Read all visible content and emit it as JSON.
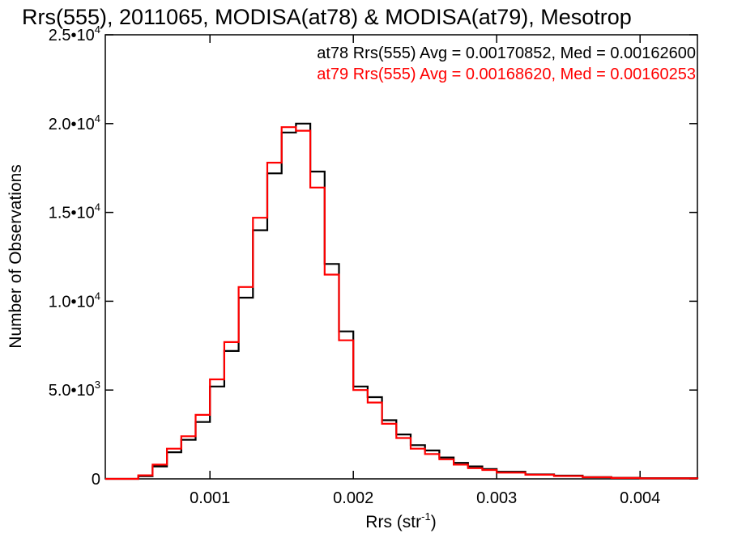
{
  "chart_data": {
    "type": "line",
    "title": "Rrs(555), 2011065, MODISA(at78) & MODISA(at79), Mesotrop",
    "xlabel": "Rrs (str",
    "xlabel_sup": "-1",
    "xlabel_close": ")",
    "ylabel": "Number of Observations",
    "xlim": [
      0.00027,
      0.0044
    ],
    "ylim": [
      0,
      25000
    ],
    "x_ticks": [
      {
        "value": 0.001,
        "label": "0.001"
      },
      {
        "value": 0.002,
        "label": "0.002"
      },
      {
        "value": 0.003,
        "label": "0.003"
      },
      {
        "value": 0.004,
        "label": "0.004"
      }
    ],
    "y_ticks": [
      {
        "value": 0,
        "mant": "0",
        "exp": ""
      },
      {
        "value": 5000,
        "mant": "5.0•10",
        "exp": "3"
      },
      {
        "value": 10000,
        "mant": "1.0•10",
        "exp": "4"
      },
      {
        "value": 15000,
        "mant": "1.5•10",
        "exp": "4"
      },
      {
        "value": 20000,
        "mant": "2.0•10",
        "exp": "4"
      },
      {
        "value": 25000,
        "mant": "2.5•10",
        "exp": "4"
      }
    ],
    "annotations": [
      {
        "text": "at78 Rrs(555) Avg = 0.00170852, Med = 0.00162600",
        "color": "#000000"
      },
      {
        "text": "at79 Rrs(555) Avg = 0.00168620, Med = 0.00160253",
        "color": "#ff0000"
      }
    ],
    "series": [
      {
        "color": "#000000",
        "x": [
          0.00027,
          0.0004,
          0.0005,
          0.0006,
          0.0007,
          0.0008,
          0.0009,
          0.001,
          0.0011,
          0.0012,
          0.0013,
          0.0014,
          0.0015,
          0.0016,
          0.0017,
          0.0018,
          0.0019,
          0.002,
          0.0021,
          0.0022,
          0.0023,
          0.0024,
          0.0025,
          0.0026,
          0.0027,
          0.0028,
          0.0029,
          0.003,
          0.0032,
          0.0034,
          0.0036,
          0.0038,
          0.004,
          0.0044
        ],
        "y": [
          0,
          0,
          150,
          700,
          1500,
          2200,
          3200,
          5200,
          7200,
          10200,
          14000,
          17200,
          19500,
          20000,
          17300,
          12100,
          8300,
          5200,
          4600,
          3300,
          2500,
          1900,
          1600,
          1200,
          900,
          700,
          550,
          400,
          250,
          180,
          100,
          60,
          40,
          0
        ]
      },
      {
        "color": "#ff0000",
        "x": [
          0.00027,
          0.0004,
          0.0005,
          0.0006,
          0.0007,
          0.0008,
          0.0009,
          0.001,
          0.0011,
          0.0012,
          0.0013,
          0.0014,
          0.0015,
          0.0016,
          0.0017,
          0.0018,
          0.0019,
          0.002,
          0.0021,
          0.0022,
          0.0023,
          0.0024,
          0.0025,
          0.0026,
          0.0027,
          0.0028,
          0.0029,
          0.003,
          0.0032,
          0.0034,
          0.0036,
          0.0038,
          0.004,
          0.0044
        ],
        "y": [
          0,
          0,
          200,
          800,
          1700,
          2400,
          3600,
          5600,
          7700,
          10800,
          14700,
          17800,
          19800,
          19600,
          16400,
          11500,
          7800,
          5000,
          4300,
          3100,
          2300,
          1700,
          1400,
          1100,
          800,
          600,
          500,
          350,
          230,
          160,
          90,
          50,
          30,
          0
        ]
      }
    ]
  }
}
